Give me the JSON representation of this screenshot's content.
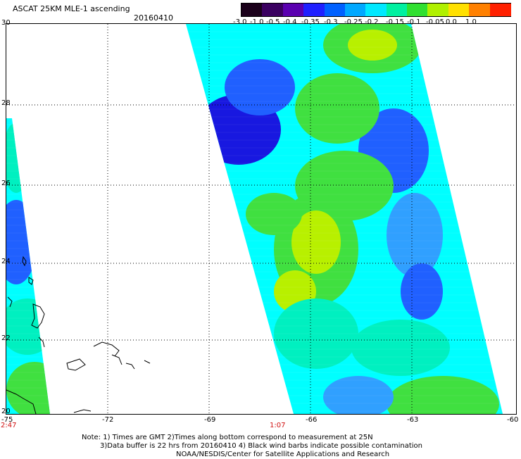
{
  "header": {
    "title": "ASCAT 25KM MLE-1 ascending",
    "date": "20160410"
  },
  "colorbar": {
    "labels": [
      "-3.0",
      "-1.0",
      "-0.5",
      "-0.4",
      "-0.35",
      "-0.3",
      "-0.25",
      "-0.2",
      "-0.15",
      "-0.1",
      "-0.05",
      "0.0",
      "1.0"
    ],
    "colors": [
      "#1a001a",
      "#3a0060",
      "#5a00b0",
      "#2020ff",
      "#0060ff",
      "#00a8ff",
      "#00e8ff",
      "#00f0a0",
      "#30e030",
      "#b0f000",
      "#ffe000",
      "#ff8000",
      "#ff2000"
    ]
  },
  "map": {
    "lat_labels": [
      "30",
      "28",
      "26",
      "24",
      "22",
      "20"
    ],
    "lon_labels": [
      "-75",
      "-72",
      "-69",
      "-66",
      "-63",
      "-60"
    ],
    "time_labels": [
      "2:47",
      "1:07"
    ],
    "swath_colors": {
      "deep_blue": "#1818e0",
      "blue": "#2060ff",
      "light_blue": "#30a0ff",
      "cyan": "#00ffff",
      "aqua": "#00f0c0",
      "green": "#40e040",
      "yellow_green": "#b8f000"
    }
  },
  "footer": {
    "line1": "Note: 1) Times are GMT 2)Times along bottom correspond to measurement at 25N",
    "line2": "3)Data buffer is 22 hrs from 20160410 4) Black wind barbs indicate possible contamination",
    "line3": "NOAA/NESDIS/Center for Satellite Applications and Research"
  }
}
